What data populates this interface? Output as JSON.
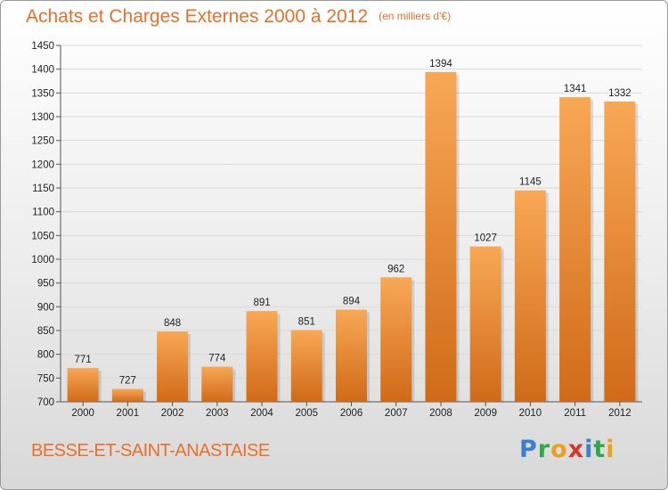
{
  "header": {
    "title": "Achats et Charges Externes 2000 à 2012",
    "unit": "(en milliers d'€)"
  },
  "footer": {
    "commune": "BESSE-ET-SAINT-ANASTAISE",
    "logo": [
      "P",
      "r",
      "o",
      "x",
      "i",
      "t",
      "i"
    ],
    "logo_colors": [
      "#3a7fd0",
      "#2ea84a",
      "#e8a21a",
      "#d8352a",
      "#3a7fd0",
      "#2ea84a",
      "#e8a21a"
    ]
  },
  "colors": {
    "bar_light": "#f8a855",
    "bar_dark": "#d06a18",
    "title": "#e8702a",
    "grid": "#d9d9d9"
  },
  "chart_data": {
    "type": "bar",
    "title": "Achats et Charges Externes 2000 à 2012",
    "subtitle": "(en milliers d'€)",
    "xlabel": "",
    "ylabel": "",
    "categories": [
      "2000",
      "2001",
      "2002",
      "2003",
      "2004",
      "2005",
      "2006",
      "2007",
      "2008",
      "2009",
      "2010",
      "2011",
      "2012"
    ],
    "values": [
      771,
      727,
      848,
      774,
      891,
      851,
      894,
      962,
      1394,
      1027,
      1145,
      1341,
      1332
    ],
    "ylim": [
      700,
      1450
    ],
    "yticks": [
      700,
      750,
      800,
      850,
      900,
      950,
      1000,
      1050,
      1100,
      1150,
      1200,
      1250,
      1300,
      1350,
      1400,
      1450
    ],
    "grid": true,
    "legend": "none"
  }
}
